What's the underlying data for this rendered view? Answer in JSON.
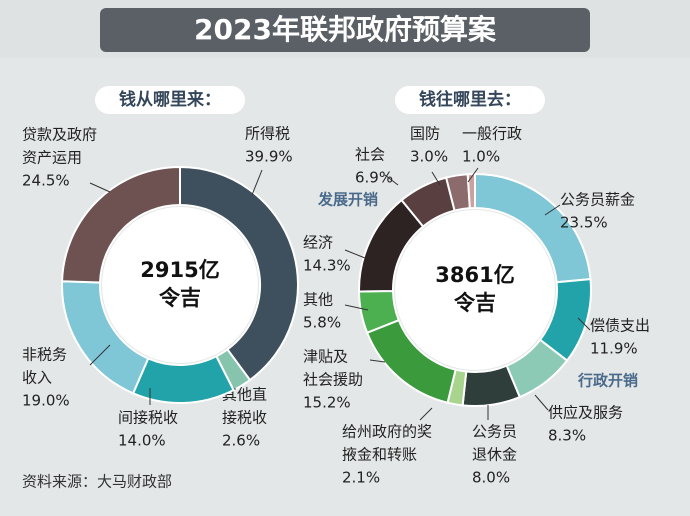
{
  "title": "2023年联邦政府预算案",
  "source": "资料来源：大马财政部",
  "chart_data": [
    {
      "type": "donut",
      "subtitle": "钱从哪里来：",
      "center_label": [
        "2915亿",
        "令吉"
      ],
      "categories": [
        [
          "所得税"
        ],
        [
          "其他直",
          "接税收"
        ],
        [
          "间接税收"
        ],
        [
          "非税务",
          "收入"
        ],
        [
          "贷款及政府",
          "资产运用"
        ]
      ],
      "values": [
        39.9,
        2.6,
        14.0,
        19.0,
        24.5
      ],
      "value_labels": [
        "39.9%",
        "2.6%",
        "14.0%",
        "19.0%",
        "24.5%"
      ],
      "colors": [
        "#3e4f5d",
        "#86c4ae",
        "#22a3aa",
        "#7fc6d6",
        "#6e5252"
      ]
    },
    {
      "type": "donut",
      "subtitle": "钱往哪里去：",
      "center_label": [
        "3861亿",
        "令吉"
      ],
      "categories": [
        [
          "公务员薪金"
        ],
        [
          "偿债支出"
        ],
        [
          "供应及服务"
        ],
        [
          "公务员",
          "退休金"
        ],
        [
          "给州政府的奖",
          "掖金和转账"
        ],
        [
          "津贴及",
          "社会援助"
        ],
        [
          "其他"
        ],
        [
          "经济"
        ],
        [
          "社会"
        ],
        [
          "国防"
        ],
        [
          "一般行政"
        ]
      ],
      "values": [
        23.5,
        11.9,
        8.3,
        8.0,
        2.1,
        15.2,
        5.8,
        14.3,
        6.9,
        3.0,
        1.0
      ],
      "value_labels": [
        "23.5%",
        "11.9%",
        "8.3%",
        "8.0%",
        "2.1%",
        "15.2%",
        "5.8%",
        "14.3%",
        "6.9%",
        "3.0%",
        "1.0%"
      ],
      "colors": [
        "#7fc6d6",
        "#22a3aa",
        "#8ccab6",
        "#2f3d3b",
        "#a9d48e",
        "#3a9a3c",
        "#4caf50",
        "#2e2323",
        "#5a3f40",
        "#8c6b6c",
        "#caa0a0"
      ],
      "annotations": [
        "发展开销",
        "行政开销"
      ]
    }
  ]
}
